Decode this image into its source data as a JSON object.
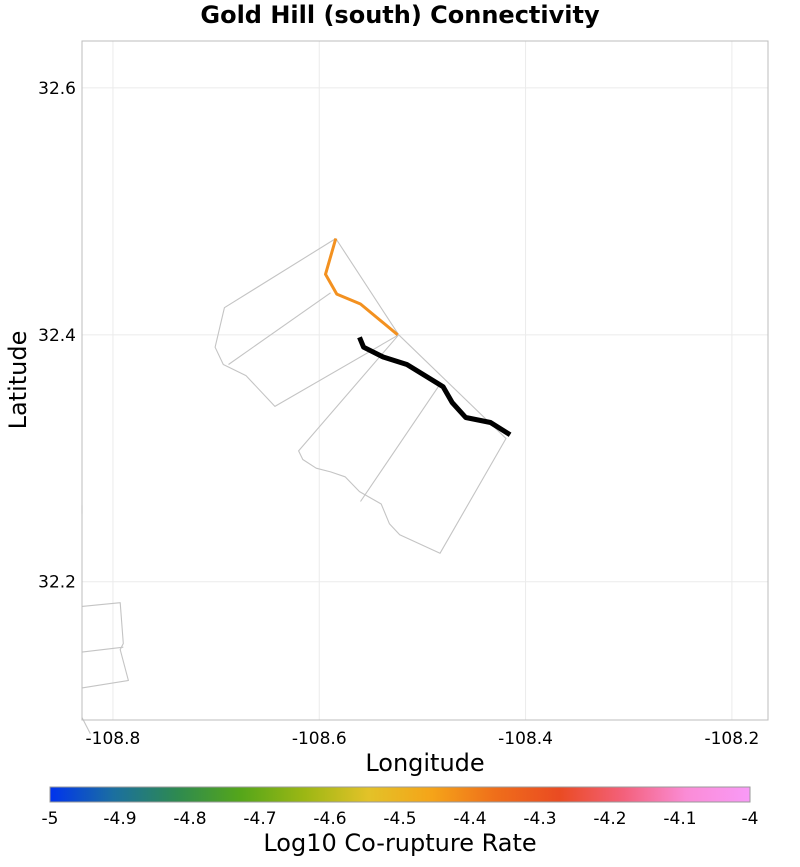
{
  "title": "Gold Hill (south) Connectivity",
  "x_axis": {
    "label": "Longitude",
    "range": [
      -108.83,
      -108.165
    ],
    "ticks": [
      -108.8,
      -108.6,
      -108.4,
      -108.2
    ]
  },
  "y_axis": {
    "label": "Latitude",
    "range": [
      32.088,
      32.638
    ],
    "ticks": [
      32.2,
      32.4,
      32.6
    ]
  },
  "grid": true,
  "colorbar": {
    "label": "Log10 Co-rupture Rate",
    "range": [
      -5,
      -4
    ],
    "ticks": [
      "-5",
      "-4.9",
      "-4.8",
      "-4.7",
      "-4.6",
      "-4.5",
      "-4.4",
      "-4.3",
      "-4.2",
      "-4.1",
      "-4"
    ],
    "gradient": [
      "#0033ee",
      "#1b6fa0",
      "#2e8a50",
      "#55a61a",
      "#9cb714",
      "#e3c228",
      "#f5a419",
      "#ef6e1a",
      "#ea4b22",
      "#f3607a",
      "#fa8cd6",
      "#f99af7"
    ]
  },
  "chart_data": {
    "type": "map",
    "fault_outlines": [
      [
        [
          -108.584,
          32.478
        ],
        [
          -108.692,
          32.422
        ],
        [
          -108.701,
          32.39
        ],
        [
          -108.693,
          32.376
        ],
        [
          -108.671,
          32.367
        ],
        [
          -108.643,
          32.342
        ],
        [
          -108.523,
          32.4
        ],
        [
          -108.584,
          32.478
        ]
      ],
      [
        [
          -108.688,
          32.376
        ],
        [
          -108.589,
          32.434
        ]
      ],
      [
        [
          -108.523,
          32.4
        ],
        [
          -108.419,
          32.316
        ],
        [
          -108.483,
          32.223
        ],
        [
          -108.522,
          32.238
        ],
        [
          -108.532,
          32.247
        ],
        [
          -108.54,
          32.263
        ],
        [
          -108.561,
          32.273
        ],
        [
          -108.575,
          32.285
        ],
        [
          -108.589,
          32.289
        ],
        [
          -108.603,
          32.292
        ],
        [
          -108.616,
          32.299
        ],
        [
          -108.62,
          32.306
        ],
        [
          -108.523,
          32.4
        ]
      ],
      [
        [
          -108.56,
          32.265
        ],
        [
          -108.483,
          32.36
        ]
      ],
      [
        [
          -108.83,
          32.18
        ],
        [
          -108.793,
          32.183
        ],
        [
          -108.79,
          32.15
        ],
        [
          -108.793,
          32.145
        ],
        [
          -108.785,
          32.12
        ],
        [
          -108.83,
          32.114
        ]
      ],
      [
        [
          -108.83,
          32.143
        ],
        [
          -108.79,
          32.147
        ]
      ],
      [
        [
          -108.83,
          32.262
        ],
        [
          -108.83,
          32.255
        ]
      ],
      [
        [
          -108.83,
          32.09
        ],
        [
          -108.822,
          32.077
        ]
      ]
    ],
    "ruptures": [
      {
        "log10_rate": -4.4,
        "color": "#f39120",
        "path": [
          [
            -108.584,
            32.478
          ],
          [
            -108.594,
            32.449
          ],
          [
            -108.583,
            32.433
          ],
          [
            -108.56,
            32.425
          ],
          [
            -108.524,
            32.4
          ]
        ]
      },
      {
        "selected": true,
        "color": "#000000",
        "path": [
          [
            -108.561,
            32.398
          ],
          [
            -108.557,
            32.39
          ],
          [
            -108.538,
            32.382
          ],
          [
            -108.515,
            32.376
          ],
          [
            -108.48,
            32.358
          ],
          [
            -108.471,
            32.345
          ],
          [
            -108.458,
            32.333
          ],
          [
            -108.434,
            32.329
          ],
          [
            -108.415,
            32.319
          ]
        ]
      }
    ]
  }
}
